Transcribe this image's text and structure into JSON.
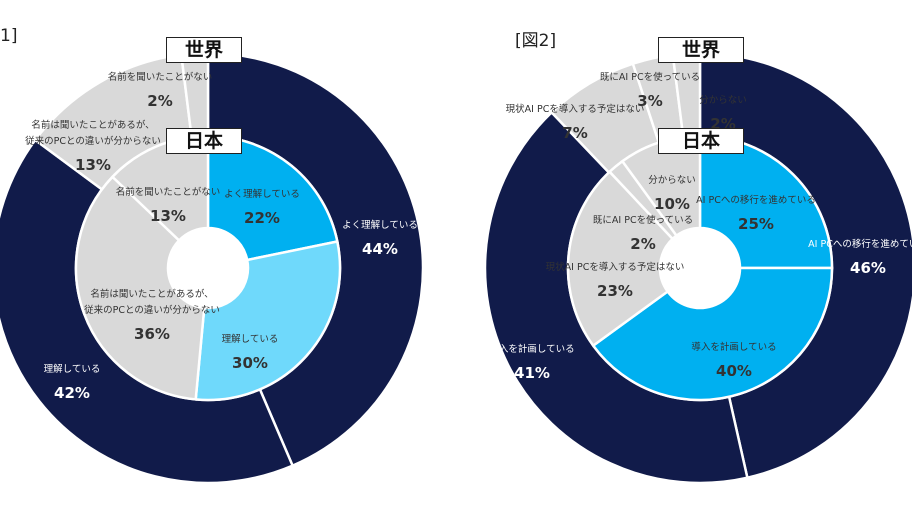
{
  "figures": [
    {
      "label": "1]",
      "world_tag": "世界",
      "japan_tag": "日本"
    },
    {
      "label": "[図2]",
      "world_tag": "世界",
      "japan_tag": "日本"
    }
  ],
  "chart_data": [
    {
      "type": "pie",
      "subtype": "nested-donut",
      "outer_ring": {
        "name": "世界",
        "slices": [
          {
            "label": "よく理解している",
            "value": 44,
            "value_label": "44%",
            "color": "#111b4a"
          },
          {
            "label": "理解している",
            "value": 42,
            "value_label": "42%",
            "color": "#111b4a"
          },
          {
            "label": "名前は聞いたことがあるが、従来のPCとの違いが分からない",
            "value": 13,
            "value_label": "13%",
            "color": "#d9d9d9"
          },
          {
            "label": "名前を聞いたことがない",
            "value": 2,
            "value_label": "2%",
            "color": "#d9d9d9"
          }
        ]
      },
      "inner_ring": {
        "name": "日本",
        "slices": [
          {
            "label": "よく理解している",
            "value": 22,
            "value_label": "22%",
            "color": "#00b0f0"
          },
          {
            "label": "理解している",
            "value": 30,
            "value_label": "30%",
            "color": "#6fd9fb"
          },
          {
            "label": "名前は聞いたことがあるが、従来のPCとの違いが分からない",
            "value": 36,
            "value_label": "36%",
            "color": "#d9d9d9"
          },
          {
            "label": "名前を聞いたことがない",
            "value": 13,
            "value_label": "13%",
            "color": "#d9d9d9"
          }
        ]
      }
    },
    {
      "type": "pie",
      "subtype": "nested-donut",
      "outer_ring": {
        "name": "世界",
        "slices": [
          {
            "label": "AI PCへの移行を進めている",
            "value": 46,
            "value_label": "46%",
            "color": "#111b4a"
          },
          {
            "label": "導入を計画している",
            "value": 41,
            "value_label": "41%",
            "color": "#111b4a"
          },
          {
            "label": "現状AI PCを導入する予定はない",
            "value": 7,
            "value_label": "7%",
            "color": "#d9d9d9"
          },
          {
            "label": "既にAI PCを使っている",
            "value": 3,
            "value_label": "3%",
            "color": "#d9d9d9"
          },
          {
            "label": "分からない",
            "value": 2,
            "value_label": "2%",
            "color": "#d9d9d9"
          }
        ]
      },
      "inner_ring": {
        "name": "日本",
        "slices": [
          {
            "label": "AI PCへの移行を進めている",
            "value": 25,
            "value_label": "25%",
            "color": "#00b0f0"
          },
          {
            "label": "導入を計画している",
            "value": 40,
            "value_label": "40%",
            "color": "#00b0f0"
          },
          {
            "label": "現状AI PCを導入する予定はない",
            "value": 23,
            "value_label": "23%",
            "color": "#d9d9d9"
          },
          {
            "label": "既にAI PCを使っている",
            "value": 2,
            "value_label": "2%",
            "color": "#d9d9d9"
          },
          {
            "label": "分からない",
            "value": 10,
            "value_label": "10%",
            "color": "#d9d9d9"
          }
        ]
      }
    }
  ]
}
